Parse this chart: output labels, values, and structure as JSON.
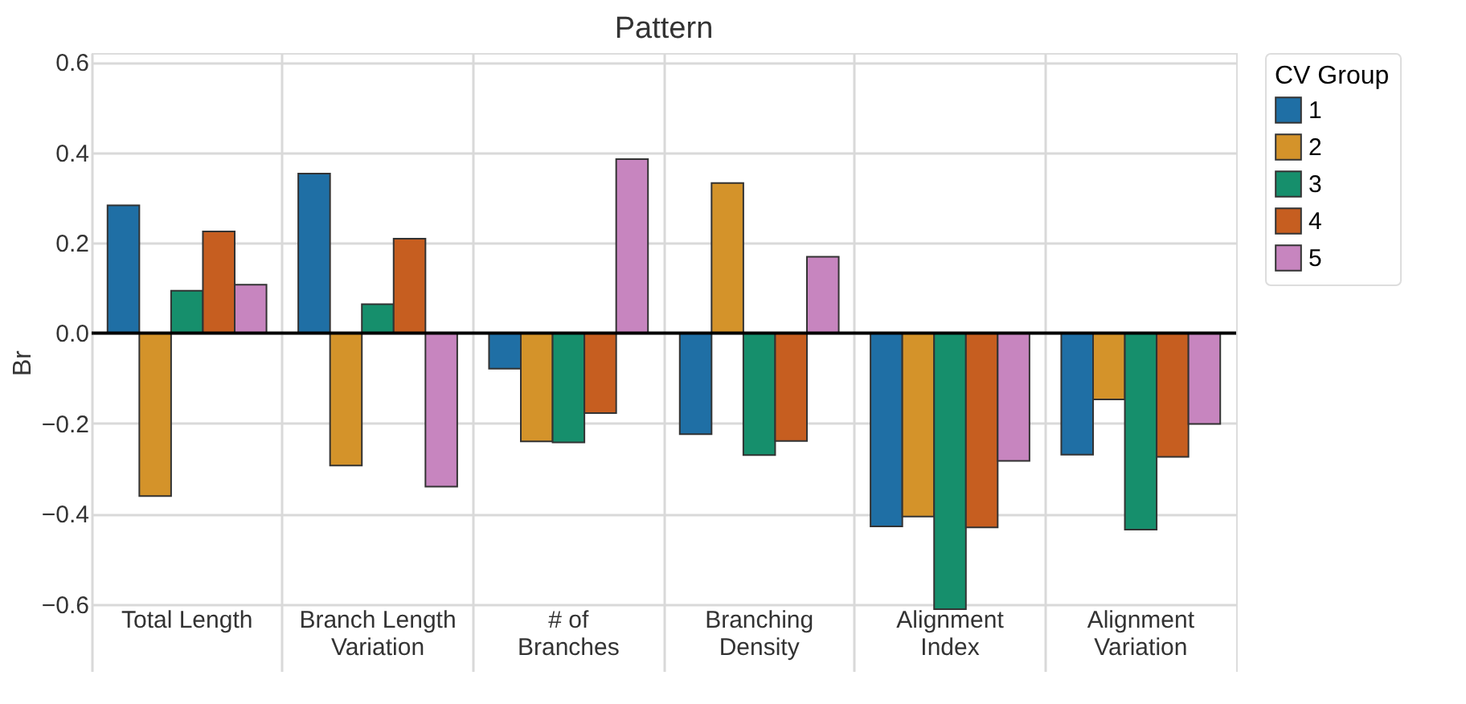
{
  "chart_data": {
    "type": "bar",
    "title": "Pattern",
    "ylabel": "Br",
    "legend_title": "CV Group",
    "categories": [
      "Total Length",
      "Branch Length Variation",
      "# of Branches",
      "Branching Density",
      "Alignment Index",
      "Alignment Variation"
    ],
    "series": [
      {
        "name": "1",
        "color": "#1f6fa5",
        "values": [
          0.283,
          0.353,
          -0.079,
          -0.224,
          -0.428,
          -0.269
        ]
      },
      {
        "name": "2",
        "color": "#d4932a",
        "values": [
          -0.361,
          -0.293,
          -0.24,
          0.332,
          -0.406,
          -0.147
        ]
      },
      {
        "name": "3",
        "color": "#168f6c",
        "values": [
          0.094,
          0.064,
          -0.242,
          -0.27,
          -0.611,
          -0.435
        ]
      },
      {
        "name": "4",
        "color": "#c65e20",
        "values": [
          0.225,
          0.209,
          -0.177,
          -0.239,
          -0.43,
          -0.274
        ]
      },
      {
        "name": "5",
        "color": "#c785bf",
        "values": [
          0.107,
          -0.34,
          0.385,
          0.169,
          -0.283,
          -0.201
        ]
      }
    ],
    "ylim": [
      -0.75,
      0.62
    ],
    "yticks": [
      {
        "value": -0.6,
        "label": "−0.6"
      },
      {
        "value": -0.4,
        "label": "−0.4"
      },
      {
        "value": -0.2,
        "label": "−0.2"
      },
      {
        "value": 0,
        "label": "0.0"
      },
      {
        "value": 0.2,
        "label": "0.2"
      },
      {
        "value": 0.4,
        "label": "0.4"
      },
      {
        "value": 0.6,
        "label": "0.6"
      }
    ],
    "ref_lines": [
      {
        "axis": "y",
        "value": 0,
        "color": "#000000"
      }
    ],
    "grid": true,
    "legend": "right"
  }
}
